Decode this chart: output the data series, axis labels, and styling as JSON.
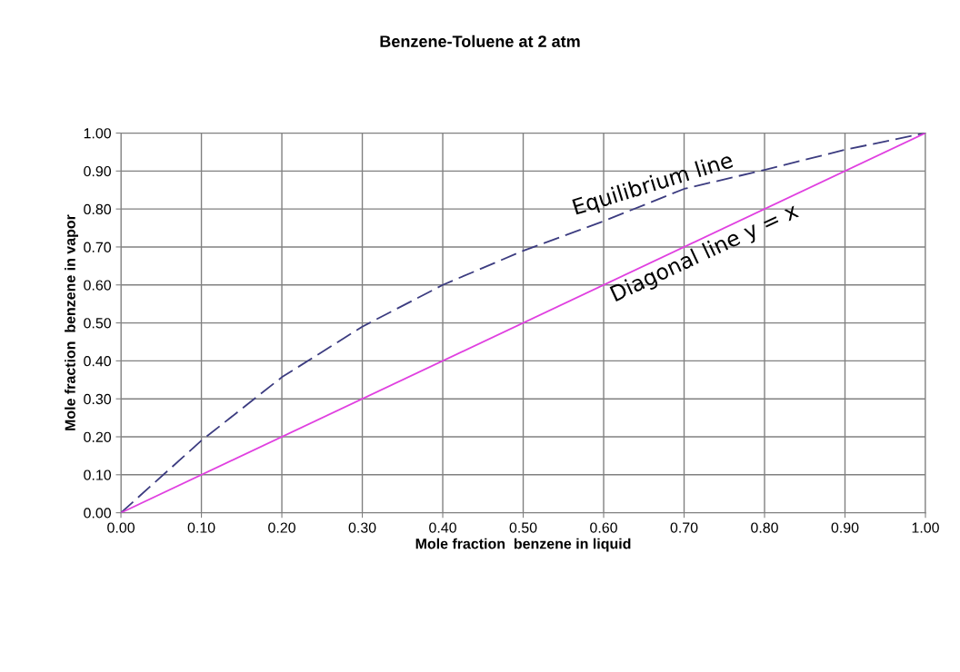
{
  "chart_data": {
    "type": "line",
    "title": "Benzene-Toluene at 2 atm",
    "xlabel": "Mole fraction  benzene in liquid",
    "ylabel": "Mole fraction  benzene in vapor",
    "series": [
      {
        "name": "Equilibrium line",
        "color": "#3c3c80",
        "line_style": "dashed",
        "x": [
          0,
          0.1,
          0.2,
          0.3,
          0.4,
          0.5,
          0.6,
          0.7,
          0.8,
          0.9,
          1.0
        ],
        "values": [
          0,
          0.19,
          0.357,
          0.49,
          0.6,
          0.69,
          0.768,
          0.853,
          0.903,
          0.956,
          1.0
        ]
      },
      {
        "name": "Diagonal line y = x",
        "color": "#e040e0",
        "line_style": "solid",
        "x": [
          0,
          1.0
        ],
        "values": [
          0,
          1.0
        ]
      }
    ],
    "xlim": [
      0,
      1.0
    ],
    "ylim": [
      0,
      1.0
    ],
    "xticks": [
      {
        "value": 0,
        "label": "0.00"
      },
      {
        "value": 0.1,
        "label": "0.10"
      },
      {
        "value": 0.2,
        "label": "0.20"
      },
      {
        "value": 0.3,
        "label": "0.30"
      },
      {
        "value": 0.4,
        "label": "0.40"
      },
      {
        "value": 0.5,
        "label": "0.50"
      },
      {
        "value": 0.6,
        "label": "0.60"
      },
      {
        "value": 0.7,
        "label": "0.70"
      },
      {
        "value": 0.8,
        "label": "0.80"
      },
      {
        "value": 0.9,
        "label": "0.90"
      },
      {
        "value": 1.0,
        "label": "1.00"
      }
    ],
    "yticks": [
      {
        "value": 0,
        "label": "0.00"
      },
      {
        "value": 0.1,
        "label": "0.10"
      },
      {
        "value": 0.2,
        "label": "0.20"
      },
      {
        "value": 0.3,
        "label": "0.30"
      },
      {
        "value": 0.4,
        "label": "0.40"
      },
      {
        "value": 0.5,
        "label": "0.50"
      },
      {
        "value": 0.6,
        "label": "0.60"
      },
      {
        "value": 0.7,
        "label": "0.70"
      },
      {
        "value": 0.8,
        "label": "0.80"
      },
      {
        "value": 0.9,
        "label": "0.90"
      },
      {
        "value": 1.0,
        "label": "1.00"
      }
    ],
    "grid": true,
    "marker": "none",
    "legend": false
  }
}
